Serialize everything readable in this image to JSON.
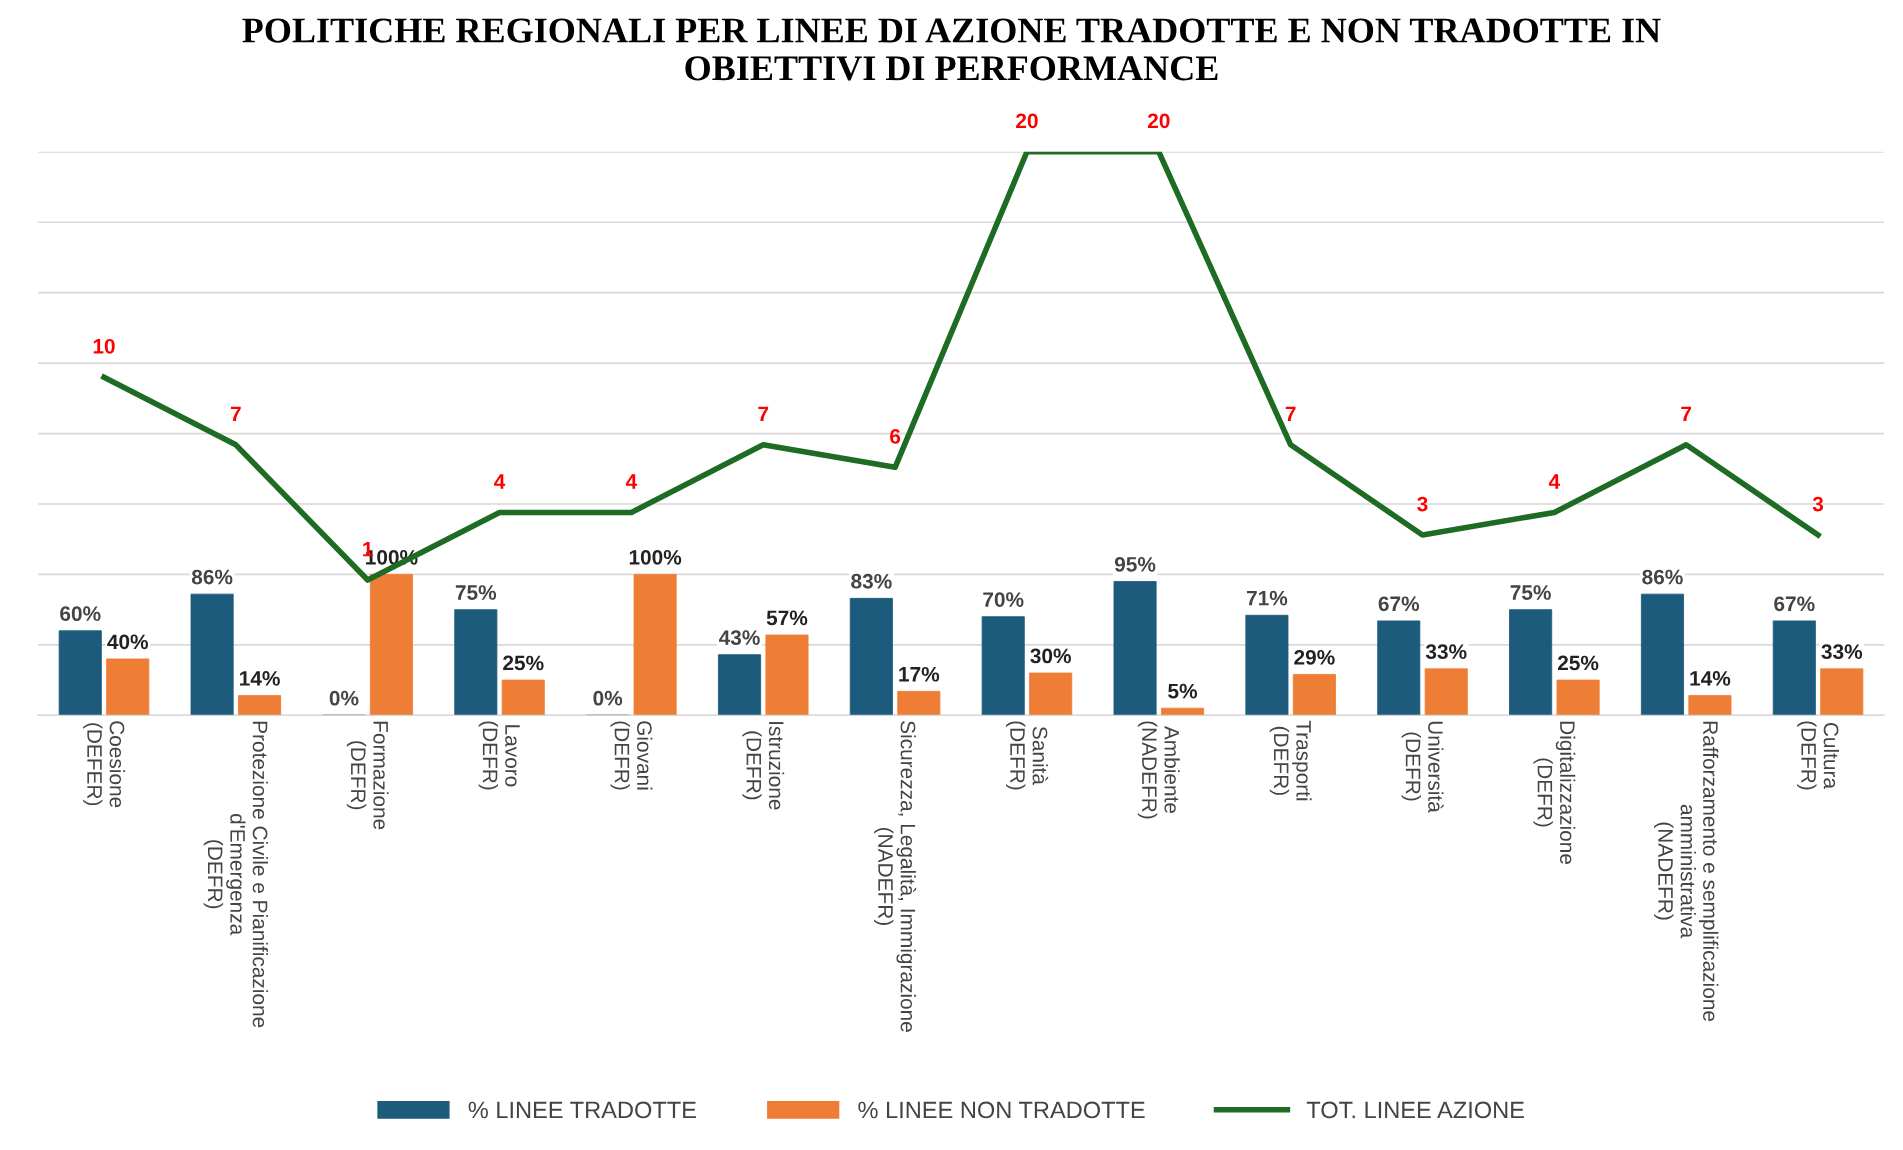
{
  "chart_data": {
    "type": "bar",
    "title": "POLITICHE REGIONALI PER LINEE DI AZIONE TRADOTTE E NON TRADOTTE IN\nOBIETTIVI DI PERFORMANCE",
    "categories": [
      "Coesione\n(DEFER)",
      "Protezione Civile e Pianificazione\nd'Emergenza\n(DEFR)",
      "Formazione\n(DEFR)",
      "Lavoro\n(DEFR)",
      "Giovani\n(DEFR)",
      "Istruzione\n(DEFR)",
      "Sicurezza, Legalità, Immigrazione\n(NADEFR)",
      "Sanità\n(DEFR)",
      "Ambiente\n(NADEFR)",
      "Trasporti\n(DEFR)",
      "Università\n(DEFR)",
      "Digitalizzazione\n(DEFR)",
      "Rafforzamento e semplificazione\namministrativa\n(NADEFR)",
      "Cultura\n(DEFR)"
    ],
    "series": [
      {
        "name": "% LINEE TRADOTTE",
        "color": "#1d5b7c",
        "values": [
          60,
          86,
          0,
          75,
          0,
          43,
          83,
          70,
          95,
          71,
          67,
          75,
          86,
          67
        ],
        "value_labels": [
          "60%",
          "86%",
          "0%",
          "75%",
          "0%",
          "43%",
          "83%",
          "70%",
          "95%",
          "71%",
          "67%",
          "75%",
          "86%",
          "67%"
        ]
      },
      {
        "name": "% LINEE NON TRADOTTE",
        "color": "#ee7d35",
        "values": [
          40,
          14,
          100,
          25,
          100,
          57,
          17,
          30,
          5,
          29,
          33,
          25,
          14,
          33
        ],
        "value_labels": [
          "40%",
          "14%",
          "100%",
          "25%",
          "100%",
          "57%",
          "17%",
          "30%",
          "5%",
          "29%",
          "33%",
          "25%",
          "14%",
          "33%"
        ]
      },
      {
        "name": "TOT. LINEE AZIONE",
        "type": "line",
        "axis": "y2",
        "color": "#1e6b24",
        "values": [
          10,
          7,
          1,
          4,
          4,
          7,
          6,
          20,
          20,
          7,
          3,
          4,
          7,
          3
        ],
        "value_labels": [
          "10",
          "7",
          "1",
          "4",
          "4",
          "7",
          "6",
          "20",
          "20",
          "7",
          "3",
          "4",
          "7",
          "3"
        ]
      }
    ],
    "ylim": [
      0,
      400
    ],
    "yticks": [
      {
        "value": 0,
        "label": null
      },
      {
        "value": 50,
        "label": null
      },
      {
        "value": 100,
        "label": null
      },
      {
        "value": 150,
        "label": null
      },
      {
        "value": 200,
        "label": null
      },
      {
        "value": 250,
        "label": null
      },
      {
        "value": 300,
        "label": null
      },
      {
        "value": 350,
        "label": null
      },
      {
        "value": 400,
        "label": null
      }
    ],
    "y2lim": [
      -5,
      20
    ],
    "grid": "y",
    "legend": "bottom",
    "tick_labels": "x",
    "marker": "none",
    "line_style": "solid"
  }
}
